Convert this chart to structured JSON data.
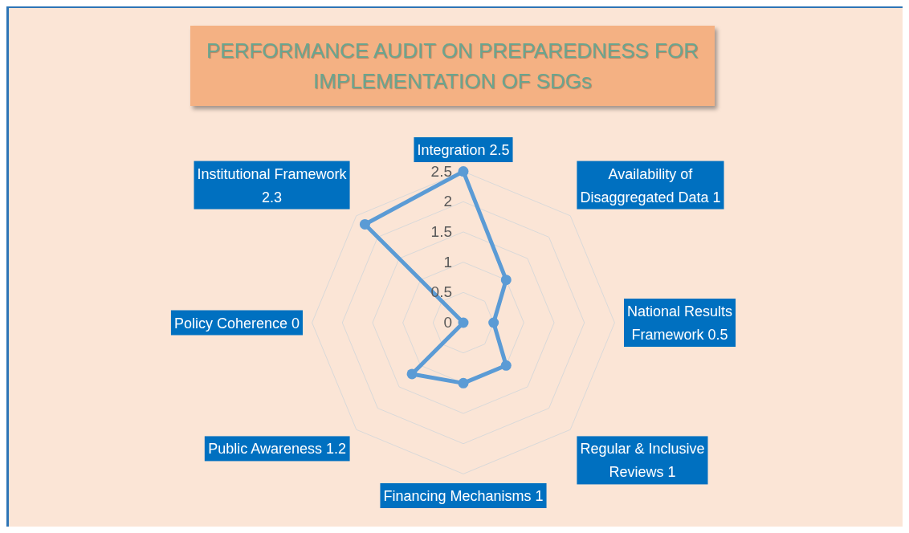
{
  "chart_data": {
    "type": "radar",
    "title": "PERFORMANCE AUDIT ON PREPAREDNESS FOR IMPLEMENTATION OF SDGs",
    "categories": [
      "Integration 2.5",
      "Availability of Disaggregated Data 1",
      "National Results Framework 0.5",
      "Regular & Inclusive Reviews 1",
      "Financing Mechanisms 1",
      "Public Awareness 1.2",
      "Policy Coherence 0",
      "Institutional Framework 2.3"
    ],
    "series": [
      {
        "color": "#5b9bd5",
        "values": [
          2.5,
          1,
          0.5,
          1,
          1,
          1.2,
          0,
          2.3
        ]
      }
    ],
    "ylim": [
      0,
      2.5
    ],
    "yticks": [
      0,
      0.5,
      1,
      1.5,
      2,
      2.5
    ],
    "grid": true,
    "marker": "circle"
  }
}
